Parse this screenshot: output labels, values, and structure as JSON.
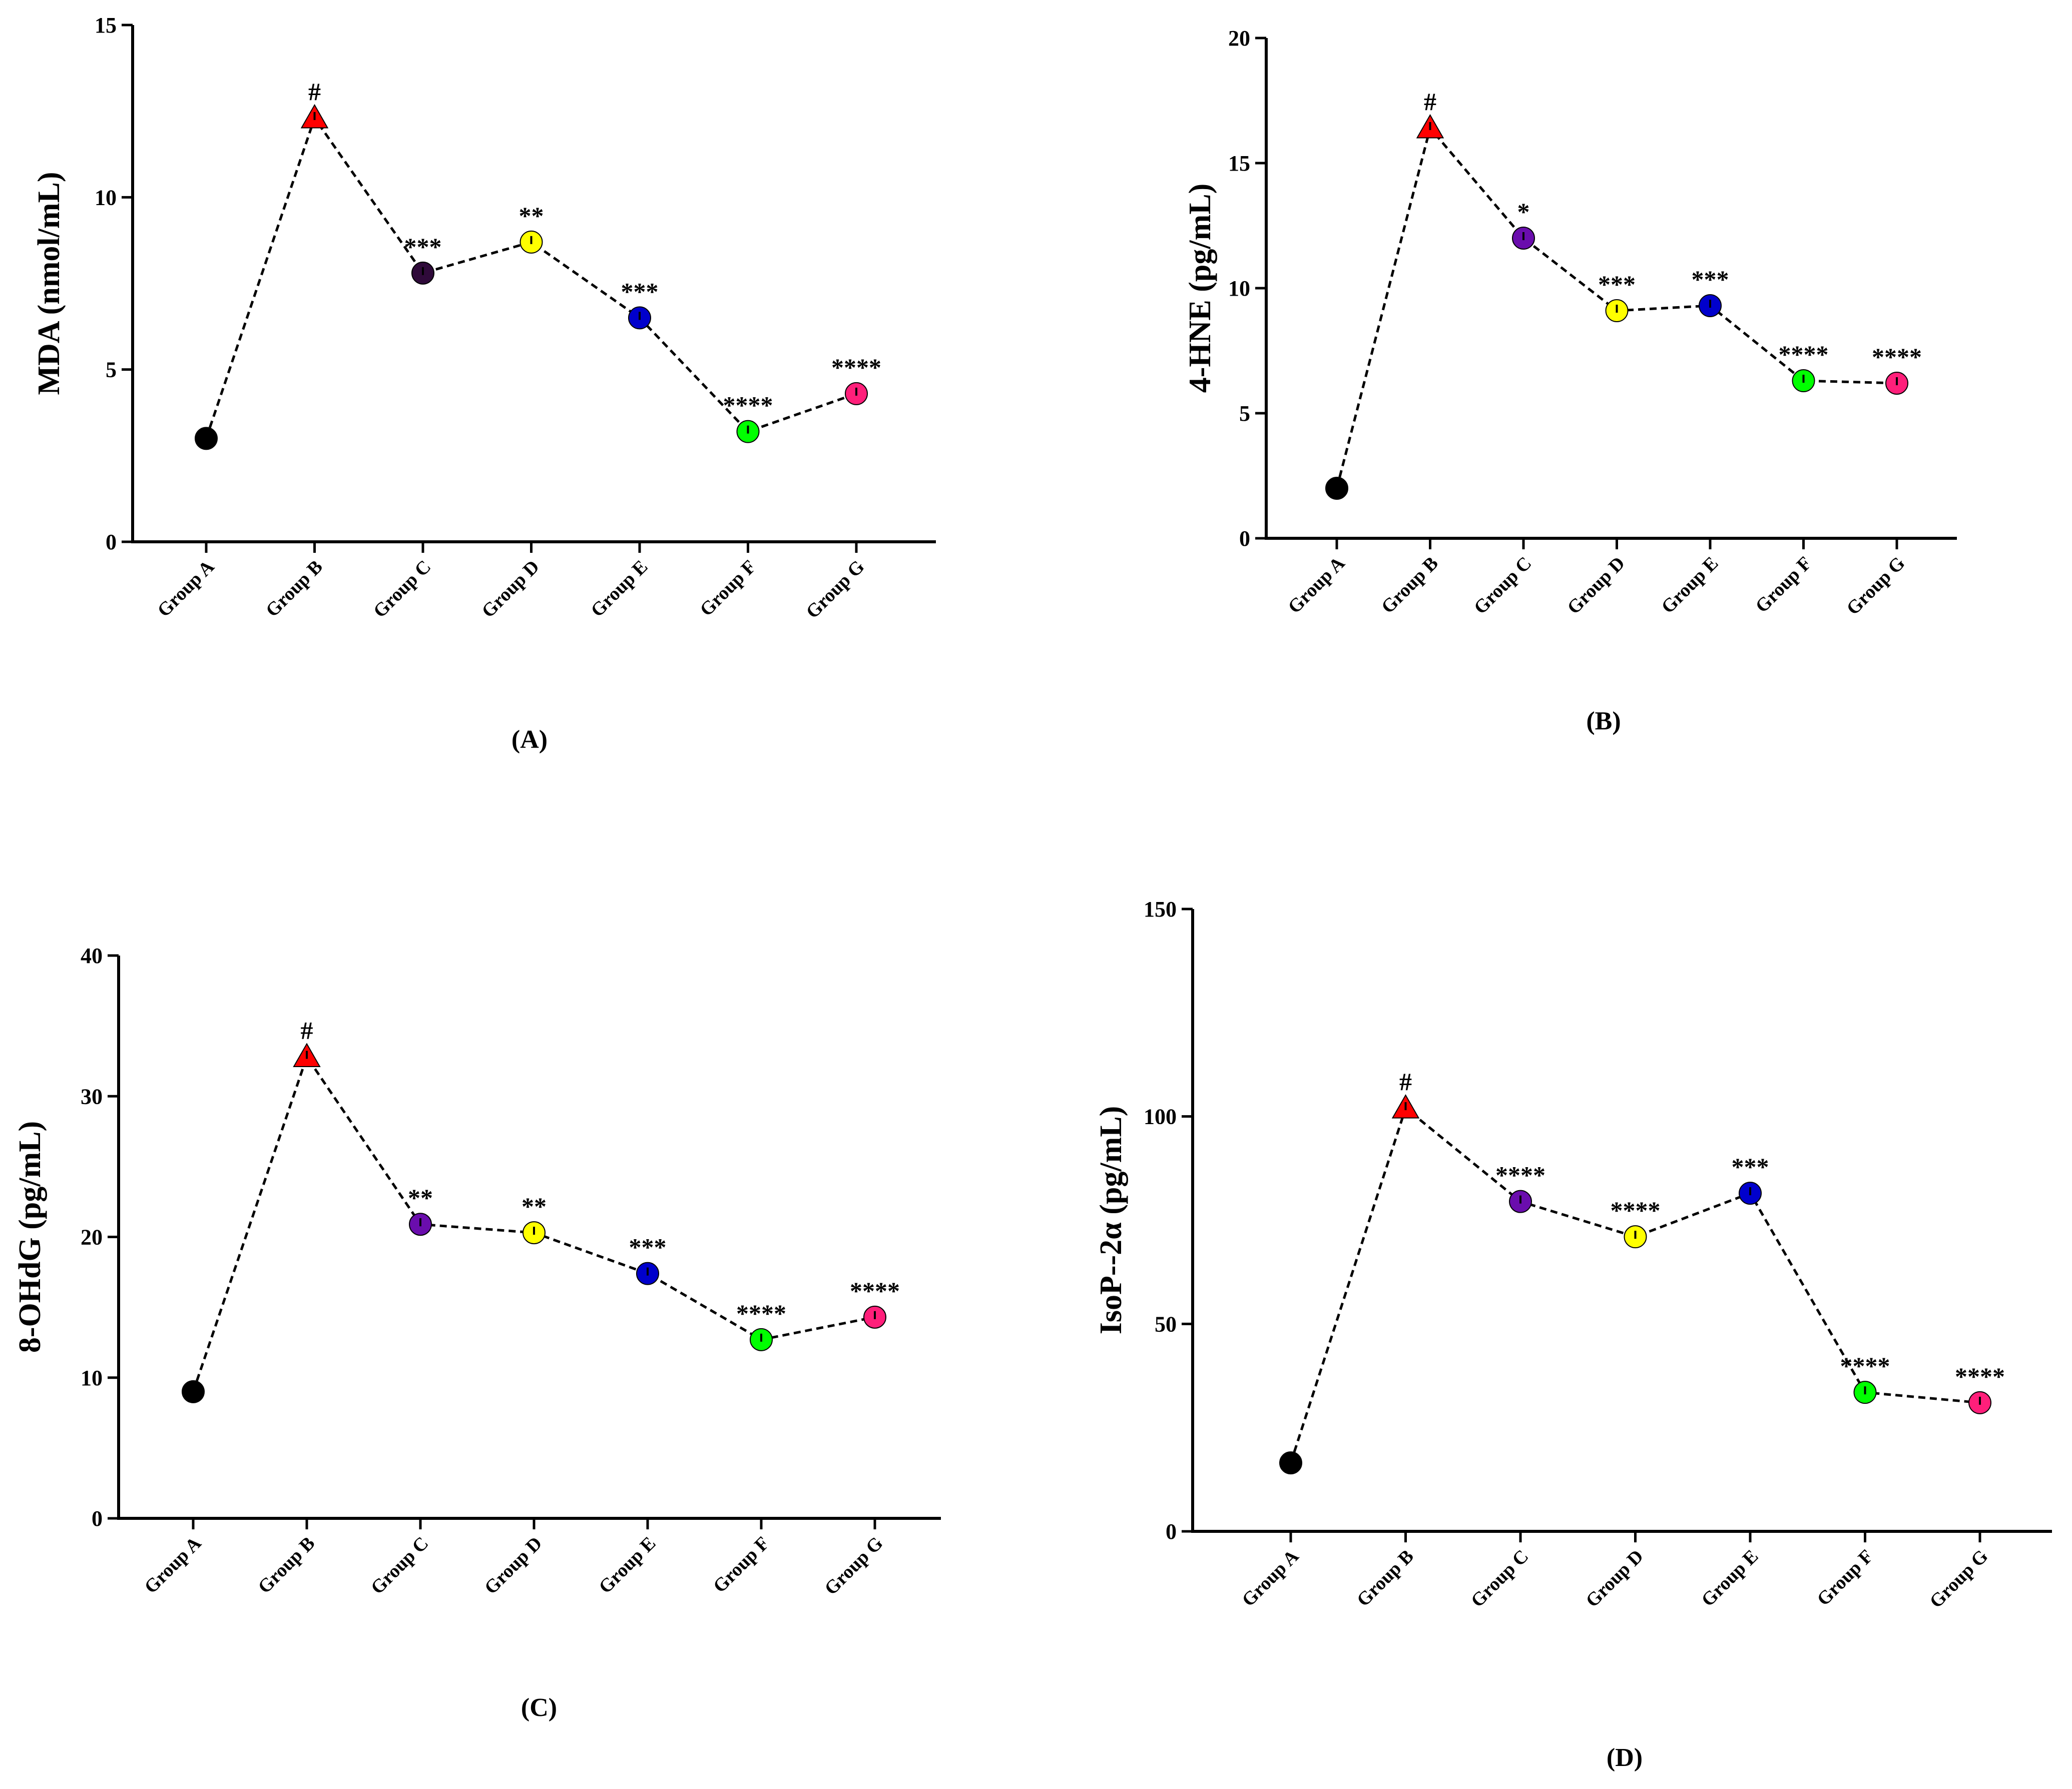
{
  "chart_data": [
    {
      "type": "line",
      "panel_label": "(A)",
      "ylabel": "MDA (nmol/mL)",
      "xlabel": "",
      "ylim": [
        0,
        15
      ],
      "yticks": [
        "0",
        "5",
        "10",
        "15"
      ],
      "categories": [
        "Group A",
        "Group B",
        "Group C",
        "Group D",
        "Group E",
        "Group F",
        "Group G"
      ],
      "values": [
        3.0,
        12.3,
        7.8,
        8.7,
        6.5,
        3.2,
        4.3
      ],
      "markers": [
        "circle",
        "triangle",
        "circle",
        "circle",
        "circle",
        "circle",
        "circle"
      ],
      "colors": [
        "#000000",
        "#ff0000",
        "#2f0a3a",
        "#ffff00",
        "#0000cc",
        "#00ff00",
        "#ff1f7a"
      ],
      "annotations": [
        "",
        "#",
        "***",
        "**",
        "***",
        "****",
        "****"
      ]
    },
    {
      "type": "line",
      "panel_label": "(B)",
      "ylabel": "4-HNE (pg/mL)",
      "xlabel": "",
      "ylim": [
        0,
        20
      ],
      "yticks": [
        "0",
        "5",
        "10",
        "15",
        "20"
      ],
      "categories": [
        "Group A",
        "Group B",
        "Group C",
        "Group D",
        "Group E",
        "Group F",
        "Group G"
      ],
      "values": [
        2.0,
        16.4,
        12.0,
        9.1,
        9.3,
        6.3,
        6.2
      ],
      "markers": [
        "circle",
        "triangle",
        "circle",
        "circle",
        "circle",
        "circle",
        "circle"
      ],
      "colors": [
        "#000000",
        "#ff0000",
        "#6a0dad",
        "#ffff00",
        "#0000cc",
        "#00ff00",
        "#ff1f7a"
      ],
      "annotations": [
        "",
        "#",
        "*",
        "***",
        "***",
        "****",
        "****"
      ]
    },
    {
      "type": "line",
      "panel_label": "(C)",
      "ylabel": "8-OHdG (pg/mL)",
      "xlabel": "",
      "ylim": [
        0,
        40
      ],
      "yticks": [
        "0",
        "10",
        "20",
        "30",
        "40"
      ],
      "categories": [
        "Group A",
        "Group B",
        "Group C",
        "Group D",
        "Group E",
        "Group F",
        "Group G"
      ],
      "values": [
        9.0,
        32.8,
        20.9,
        20.3,
        17.4,
        12.7,
        14.3
      ],
      "markers": [
        "circle",
        "triangle",
        "circle",
        "circle",
        "circle",
        "circle",
        "circle"
      ],
      "colors": [
        "#000000",
        "#ff0000",
        "#6a0dad",
        "#ffff00",
        "#0000cc",
        "#00ff00",
        "#ff1f7a"
      ],
      "annotations": [
        "",
        "#",
        "**",
        "**",
        "***",
        "****",
        "****"
      ]
    },
    {
      "type": "line",
      "panel_label": "(D)",
      "ylabel": "IsoP--2α (pg/mL)",
      "xlabel": "",
      "ylim": [
        0,
        150
      ],
      "yticks": [
        "0",
        "50",
        "100",
        "150"
      ],
      "categories": [
        "Group A",
        "Group B",
        "Group C",
        "Group D",
        "Group E",
        "Group F",
        "Group G"
      ],
      "values": [
        16.5,
        102.0,
        79.5,
        71.0,
        81.5,
        33.5,
        31.0
      ],
      "markers": [
        "circle",
        "triangle",
        "circle",
        "circle",
        "circle",
        "circle",
        "circle"
      ],
      "colors": [
        "#000000",
        "#ff0000",
        "#6a0dad",
        "#ffff00",
        "#0000cc",
        "#00ff00",
        "#ff1f7a"
      ],
      "annotations": [
        "",
        "#",
        "****",
        "****",
        "***",
        "****",
        "****"
      ]
    }
  ]
}
